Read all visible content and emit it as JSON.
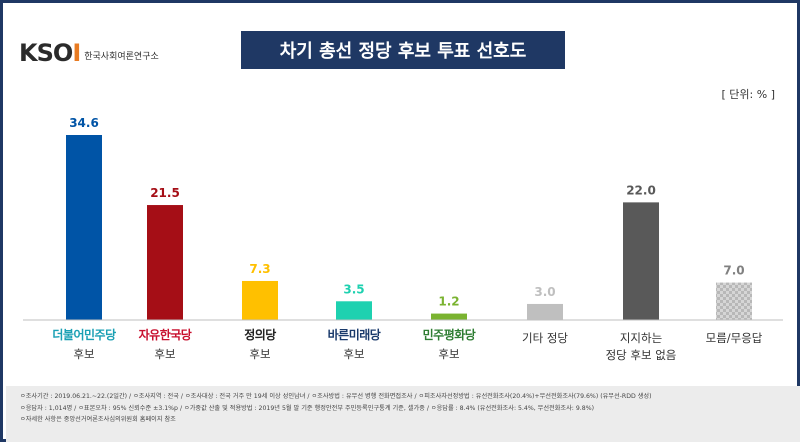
{
  "header": {
    "logo_text": "KSOI",
    "logo_subtitle": "한국사회여론연구소",
    "title": "차기 총선 정당 후보 투표 선호도",
    "unit": "[ 단위: % ]"
  },
  "party_logos": [
    "더불어민주당",
    "자유한국당",
    "정의당",
    "바른미래당",
    "민주평화당"
  ],
  "category_lines": [
    [
      "",
      "후보"
    ],
    [
      "",
      "후보"
    ],
    [
      "",
      "후보"
    ],
    [
      "",
      "후보"
    ],
    [
      "",
      "후보"
    ],
    [
      "기타 정당",
      ""
    ],
    [
      "지지하는",
      "정당 후보 없음"
    ],
    [
      "모름/무응답",
      ""
    ]
  ],
  "colors": {
    "title_bg": "#1f3864",
    "bars": [
      "#0054a6",
      "#a50e16",
      "#ffc000",
      "#1ed1b0",
      "#7ab330",
      "#bfbfbf",
      "#595959",
      "#c8c8c8"
    ],
    "labels": [
      "#0054a6",
      "#a50e16",
      "#ffc000",
      "#1ed1b0",
      "#7ab330",
      "#bfbfbf",
      "#595959",
      "#808080"
    ]
  },
  "chart_data": {
    "type": "bar",
    "categories": [
      "더불어민주당 후보",
      "자유한국당 후보",
      "정의당 후보",
      "바른미래당 후보",
      "민주평화당 후보",
      "기타 정당",
      "지지하는 정당 후보 없음",
      "모름/무응답"
    ],
    "values": [
      34.6,
      21.5,
      7.3,
      3.5,
      1.2,
      3.0,
      22.0,
      7.0
    ],
    "value_labels": [
      "34.6",
      "21.5",
      "7.3",
      "3.5",
      "1.2",
      "3.0",
      "22.0",
      "7.0"
    ],
    "ylabel": "%",
    "ylim": [
      0,
      40
    ],
    "grid": false,
    "legend": "none"
  },
  "footer": {
    "line1": "ㅇ조사기간 : 2019.06.21.~22.(2일간) / ㅇ조사지역 : 전국 / ㅇ조사대상 : 전국 거주 만 19세 이상 성인남녀 / ㅇ조사방법 : 유무선 병행 전화면접조사 / ㅇ피조사자선정방법 : 유선전화조사(20.4%)+무선전화조사(79.6%) (유무선-RDD 생성)",
    "line2": "ㅇ응답자 : 1,014명 / ㅇ표본오차 : 95% 신뢰수준 ±3.1%p / ㅇ가중값 산출 및 적용방법 : 2019년 5월 말 기준 행정안전부 주민등록인구통계 기준, 셀가중 / ㅇ응답률 : 8.4% (유선전화조사: 5.4%, 무선전화조사: 9.8%)",
    "line3": "ㅇ자세한 사항은 중앙선거여론조사심의위원회 홈페이지 참조"
  }
}
